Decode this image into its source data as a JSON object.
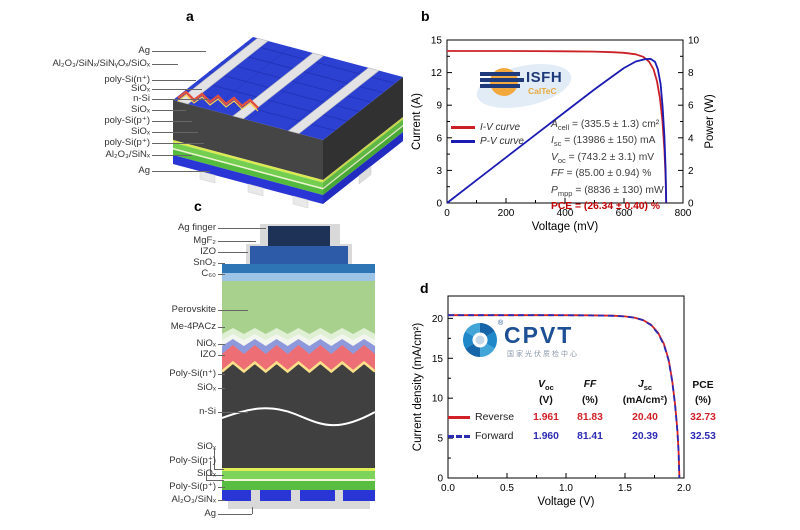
{
  "panels": {
    "a": {
      "letter": "a",
      "labels": [
        "Ag",
        "Al₂O₃/SiNₓ/SiNᵧOₓ/SiOₓ",
        "poly-Si(n⁺)",
        "SiOₓ",
        "n-Si",
        "SiOₓ",
        "poly-Si(p⁺)",
        "SiOₓ",
        "poly-Si(p⁺)",
        "Al₂O₃/SiNₓ",
        "Ag"
      ]
    },
    "b": {
      "letter": "b"
    },
    "c": {
      "letter": "c",
      "labels": [
        "Ag finger",
        "MgF₂",
        "IZO",
        "SnO₂",
        "C₆₀",
        "Perovskite",
        "Me-4PACz",
        "NiOₓ",
        "IZO",
        "Poly-Si(n⁺)",
        "SiOₓ",
        "n-Si",
        "SiOₓ",
        "Poly-Si(p⁺)",
        "SiOₓ",
        "Poly-Si(p⁺)",
        "Al₂O₃/SiNₓ",
        "Ag"
      ]
    },
    "d": {
      "letter": "d"
    }
  },
  "chart_data": [
    {
      "panel": "b",
      "type": "line",
      "xlabel": "Voltage (mV)",
      "ylabel_left": "Current (A)",
      "ylabel_right": "Power (W)",
      "xlim": [
        0,
        800
      ],
      "ylim_left": [
        0,
        15
      ],
      "ylim_right": [
        0,
        10
      ],
      "xticks": [
        "0",
        "200",
        "400",
        "600",
        "800"
      ],
      "yticks_left": [
        "0",
        "3",
        "6",
        "9",
        "12",
        "15"
      ],
      "yticks_right": [
        "0",
        "2",
        "4",
        "6",
        "8",
        "10"
      ],
      "legend_position": "left-middle",
      "grid": false,
      "series": [
        {
          "name": "I-V curve",
          "color": "#cc2027",
          "style": "solid",
          "axis": "left",
          "points": [
            [
              0,
              13.99
            ],
            [
              100,
              13.99
            ],
            [
              200,
              13.99
            ],
            [
              300,
              13.98
            ],
            [
              400,
              13.96
            ],
            [
              500,
              13.93
            ],
            [
              560,
              13.88
            ],
            [
              600,
              13.82
            ],
            [
              640,
              13.68
            ],
            [
              665,
              13.45
            ],
            [
              685,
              13.0
            ],
            [
              700,
              12.3
            ],
            [
              712,
              11.2
            ],
            [
              722,
              9.6
            ],
            [
              730,
              7.6
            ],
            [
              737,
              4.9
            ],
            [
              741,
              2.4
            ],
            [
              743.2,
              0
            ]
          ]
        },
        {
          "name": "P-V curve",
          "color": "#1b1bb3",
          "style": "solid",
          "axis": "right",
          "points": [
            [
              0,
              0
            ],
            [
              100,
              1.4
            ],
            [
              200,
              2.8
            ],
            [
              300,
              4.19
            ],
            [
              400,
              5.58
            ],
            [
              500,
              6.97
            ],
            [
              560,
              7.76
            ],
            [
              600,
              8.28
            ],
            [
              640,
              8.68
            ],
            [
              670,
              8.82
            ],
            [
              690,
              8.84
            ],
            [
              705,
              8.67
            ],
            [
              715,
              8.2
            ],
            [
              724,
              7.3
            ],
            [
              731,
              5.9
            ],
            [
              737,
              4.1
            ],
            [
              741,
              2.1
            ],
            [
              743.2,
              0
            ]
          ]
        }
      ],
      "annotations": [
        {
          "sym": "A",
          "sub": "cell",
          "rest": " = (335.5 ± 1.3) cm²"
        },
        {
          "sym": "I",
          "sub": "sc",
          "rest": " = (13986 ± 150) mA"
        },
        {
          "sym": "V",
          "sub": "oc",
          "rest": " = (743.2 ± 3.1) mV"
        },
        {
          "sym": "FF",
          "sub": "",
          "rest": " = (85.00 ± 0.94) %"
        },
        {
          "sym": "P",
          "sub": "mpp",
          "rest": " = (8836 ± 130) mW"
        },
        {
          "sym": "PCE",
          "sub": "",
          "rest": " = (26.34 ± 0.40) %"
        }
      ],
      "logo": {
        "name": "ISFH",
        "subtext": "CalTeC"
      }
    },
    {
      "panel": "d",
      "type": "line",
      "xlabel": "Voltage (V)",
      "ylabel_left": "Current density (mA/cm²)",
      "xlim": [
        0,
        2.0
      ],
      "ylim_left": [
        0,
        22.8
      ],
      "xticks": [
        "0.0",
        "0.5",
        "1.0",
        "1.5",
        "2.0"
      ],
      "yticks_left": [
        "0",
        "5",
        "10",
        "15",
        "20"
      ],
      "grid": false,
      "series": [
        {
          "name": "Reverse",
          "color": "#cf2127",
          "style": "solid",
          "axis": "left",
          "points": [
            [
              0,
              20.4
            ],
            [
              0.3,
              20.4
            ],
            [
              0.6,
              20.4
            ],
            [
              0.9,
              20.4
            ],
            [
              1.2,
              20.38
            ],
            [
              1.4,
              20.33
            ],
            [
              1.5,
              20.25
            ],
            [
              1.58,
              20.1
            ],
            [
              1.65,
              19.8
            ],
            [
              1.72,
              19.2
            ],
            [
              1.78,
              18.2
            ],
            [
              1.83,
              16.8
            ],
            [
              1.87,
              14.8
            ],
            [
              1.9,
              12.2
            ],
            [
              1.925,
              9.2
            ],
            [
              1.945,
              5.8
            ],
            [
              1.955,
              3.0
            ],
            [
              1.961,
              0
            ]
          ]
        },
        {
          "name": "Forward",
          "color": "#2b2bb4",
          "style": "dashed",
          "axis": "left",
          "points": [
            [
              0,
              20.39
            ],
            [
              0.3,
              20.39
            ],
            [
              0.6,
              20.39
            ],
            [
              0.9,
              20.39
            ],
            [
              1.2,
              20.37
            ],
            [
              1.4,
              20.32
            ],
            [
              1.5,
              20.24
            ],
            [
              1.58,
              20.08
            ],
            [
              1.65,
              19.78
            ],
            [
              1.72,
              19.15
            ],
            [
              1.78,
              18.1
            ],
            [
              1.83,
              16.7
            ],
            [
              1.87,
              14.7
            ],
            [
              1.9,
              12.1
            ],
            [
              1.925,
              9.1
            ],
            [
              1.945,
              5.7
            ],
            [
              1.955,
              2.9
            ],
            [
              1.96,
              0
            ]
          ]
        }
      ],
      "table": {
        "headers": [
          {
            "sym": "V",
            "sub": "oc",
            "unit": "(V)"
          },
          {
            "sym": "FF",
            "sub": "",
            "unit": "(%)"
          },
          {
            "sym": "J",
            "sub": "sc",
            "unit": "(mA/cm²)"
          },
          {
            "sym": "PCE",
            "sub": "",
            "unit": "(%)"
          }
        ],
        "rows": [
          {
            "name": "Reverse",
            "values": [
              "1.961",
              "81.83",
              "20.40",
              "32.73"
            ]
          },
          {
            "name": "Forward",
            "values": [
              "1.960",
              "81.41",
              "20.39",
              "32.53"
            ]
          }
        ]
      },
      "logo": {
        "name": "CPVT",
        "registered": "®",
        "subtext": "国家光伏质检中心"
      }
    }
  ]
}
